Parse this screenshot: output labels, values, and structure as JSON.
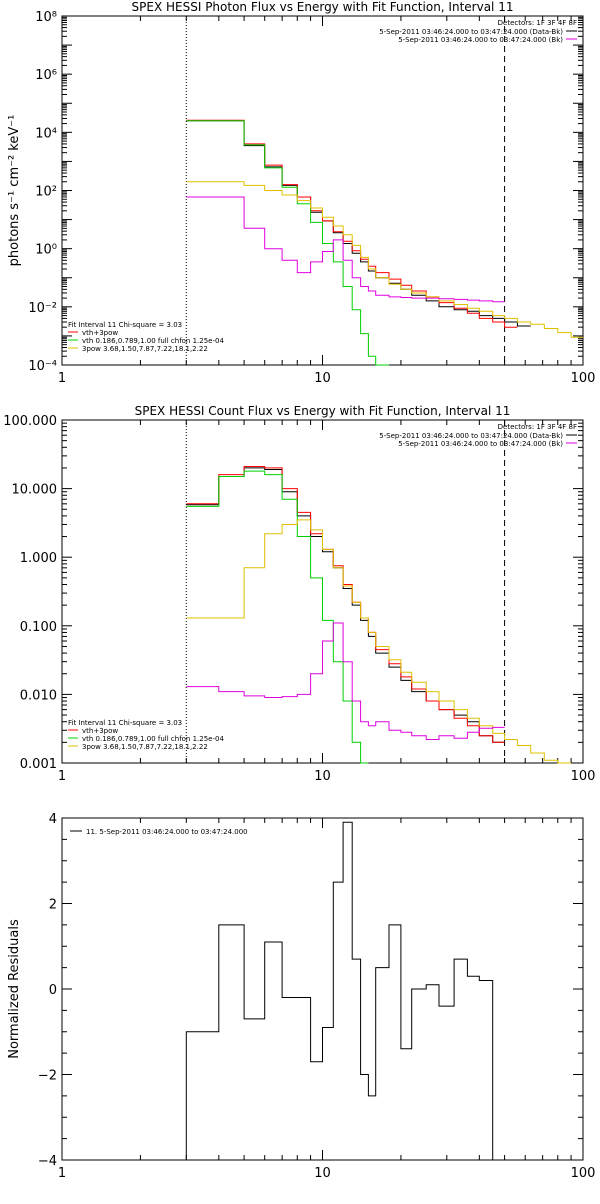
{
  "chart_data": [
    {
      "type": "line",
      "title": "SPEX HESSI Photon Flux vs Energy with Fit Function, Interval 11",
      "xlabel": "",
      "ylabel": "photons s⁻¹ cm⁻² keV⁻¹",
      "xscale": "log",
      "yscale": "log",
      "xlim": [
        1,
        100
      ],
      "ylim": [
        0.0001,
        100000000
      ],
      "x_ticks": [
        1,
        10,
        100
      ],
      "x_tick_labels": [
        "1",
        "10",
        "100"
      ],
      "y_ticks": [
        0.0001,
        0.01,
        1,
        100,
        10000,
        1000000,
        100000000
      ],
      "y_tick_labels": [
        "10⁻⁴",
        "10⁻²",
        "10⁰",
        "10²",
        "10⁴",
        "10⁶",
        "10⁸"
      ],
      "vlines": [
        {
          "x": 3,
          "style": "dotted"
        },
        {
          "x": 50,
          "style": "dashed"
        }
      ],
      "legend_top": {
        "position": "top-right",
        "header": "Detectors: 1F 3F 4F 8F",
        "entries": [
          {
            "label": "5-Sep-2011 03:46:24.000 to 03:47:24.000 (Data-Bk)",
            "color": "#000000"
          },
          {
            "label": "5-Sep-2011 03:46:24.000 to 03:47:24.000 (Bk)",
            "color": "#e000e0"
          }
        ]
      },
      "legend_bottom": {
        "position": "bottom-left",
        "header": "Fit Interval 11    Chi-square = 3.03",
        "entries": [
          {
            "label": "vth+3pow",
            "color": "#ff0000"
          },
          {
            "label": "vth 0.186,0.789,1.00  full chfon 1.25e-04",
            "color": "#00d000"
          },
          {
            "label": "3pow 3.68,1.50,7.87,7.22,18.1,2.22",
            "color": "#e0c000"
          }
        ]
      },
      "bin_edges": [
        3,
        4,
        5,
        6,
        7,
        8,
        9,
        10,
        11,
        12,
        13,
        14,
        15,
        16,
        18,
        20,
        22,
        25,
        28,
        32,
        36,
        40,
        45,
        50,
        56,
        63,
        71,
        80,
        90,
        100
      ],
      "series": [
        {
          "name": "Data-Bk",
          "color": "#000000",
          "values": [
            25000,
            25000,
            3500,
            650,
            150,
            60,
            18,
            9,
            3.5,
            1.5,
            0.7,
            0.35,
            0.17,
            0.1,
            0.065,
            0.04,
            0.025,
            0.016,
            0.01,
            0.008,
            0.007,
            0.005,
            0.004,
            0.003,
            0.0022
          ]
        },
        {
          "name": "vth+3pow",
          "color": "#ff0000",
          "values": [
            26000,
            26000,
            4000,
            750,
            160,
            60,
            20,
            9,
            3.8,
            1.8,
            0.85,
            0.43,
            0.25,
            0.15,
            0.09,
            0.055,
            0.035,
            0.022,
            0.014,
            0.009,
            0.006,
            0.004,
            0.003,
            0.002
          ]
        },
        {
          "name": "vth",
          "color": "#00d000",
          "values": [
            25000,
            25000,
            3700,
            600,
            130,
            35,
            8,
            1.5,
            0.35,
            0.05,
            0.008,
            0.0012,
            0.0002,
            3e-05
          ]
        },
        {
          "name": "3pow",
          "color": "#e0c000",
          "values": [
            200,
            200,
            150,
            100,
            70,
            45,
            25,
            12,
            6,
            3,
            1.3,
            0.5,
            0.2,
            0.1,
            0.06,
            0.04,
            0.03,
            0.022,
            0.016,
            0.012,
            0.009,
            0.007,
            0.005,
            0.004,
            0.003,
            0.0025,
            0.0018,
            0.0013,
            0.0009
          ]
        },
        {
          "name": "Bk",
          "color": "#e000e0",
          "values": [
            60,
            60,
            5,
            1,
            0.4,
            0.15,
            0.35,
            0.8,
            2,
            0.4,
            0.1,
            0.05,
            0.035,
            0.025,
            0.022,
            0.021,
            0.02,
            0.02,
            0.019,
            0.018,
            0.017,
            0.016,
            0.015
          ]
        }
      ]
    },
    {
      "type": "line",
      "title": "SPEX HESSI Count Flux vs Energy with Fit Function, Interval 11",
      "xlabel": "",
      "ylabel": "",
      "xscale": "log",
      "yscale": "log",
      "xlim": [
        1,
        100
      ],
      "ylim": [
        0.001,
        100
      ],
      "x_ticks": [
        1,
        10,
        100
      ],
      "x_tick_labels": [
        "1",
        "10",
        "100"
      ],
      "y_ticks": [
        0.001,
        0.01,
        0.1,
        1,
        10,
        100
      ],
      "y_tick_labels": [
        "0.001",
        "0.010",
        "0.100",
        "1.000",
        "10.000",
        "100.000"
      ],
      "vlines": [
        {
          "x": 3,
          "style": "dotted"
        },
        {
          "x": 50,
          "style": "dashed"
        }
      ],
      "legend_top": {
        "position": "top-right",
        "header": "Detectors: 1F 3F 4F 8F",
        "entries": [
          {
            "label": "5-Sep-2011 03:46:24.000 to 03:47:24.000 (Data-Bk)",
            "color": "#000000"
          },
          {
            "label": "5-Sep-2011 03:46:24.000 to 03:47:24.000 (Bk)",
            "color": "#e000e0"
          }
        ]
      },
      "legend_bottom": {
        "position": "bottom-left",
        "header": "Fit Interval 11    Chi-square = 3.03",
        "entries": [
          {
            "label": "vth+3pow",
            "color": "#ff0000"
          },
          {
            "label": "vth 0.186,0.789,1.00  full chfon 1.25e-04",
            "color": "#00d000"
          },
          {
            "label": "3pow 3.68,1.50,7.87,7.22,18.1,2.22",
            "color": "#e0c000"
          }
        ]
      },
      "bin_edges": [
        3,
        4,
        5,
        6,
        7,
        8,
        9,
        10,
        11,
        12,
        13,
        14,
        15,
        16,
        18,
        20,
        22,
        25,
        28,
        32,
        36,
        40,
        45,
        50,
        56,
        63,
        71,
        80,
        90,
        100
      ],
      "series": [
        {
          "name": "Data-Bk",
          "color": "#000000",
          "values": [
            5.8,
            15,
            20,
            19,
            9,
            4,
            2,
            1.2,
            0.7,
            0.35,
            0.2,
            0.12,
            0.07,
            0.04,
            0.025,
            0.016,
            0.011,
            0.008,
            0.006,
            0.005,
            0.004,
            0.0025,
            0.002
          ]
        },
        {
          "name": "vth+3pow",
          "color": "#ff0000",
          "values": [
            6,
            16,
            21,
            20,
            10,
            4.5,
            2.2,
            1.3,
            0.75,
            0.4,
            0.22,
            0.13,
            0.08,
            0.045,
            0.028,
            0.018,
            0.012,
            0.008,
            0.006,
            0.0045,
            0.0035,
            0.0025,
            0.002
          ]
        },
        {
          "name": "vth",
          "color": "#00d000",
          "values": [
            5.5,
            15,
            18,
            16,
            7,
            2,
            0.5,
            0.12,
            0.03,
            0.008,
            0.002,
            0.0006
          ]
        },
        {
          "name": "3pow",
          "color": "#e0c000",
          "values": [
            0.13,
            0.13,
            0.7,
            2.2,
            3,
            3.5,
            2.5,
            1.3,
            0.7,
            0.38,
            0.22,
            0.13,
            0.08,
            0.05,
            0.032,
            0.021,
            0.015,
            0.011,
            0.008,
            0.006,
            0.0045,
            0.0035,
            0.0027,
            0.0022,
            0.0018,
            0.0014,
            0.0011,
            0.0009
          ]
        },
        {
          "name": "Bk",
          "color": "#e000e0",
          "values": [
            0.013,
            0.011,
            0.0095,
            0.009,
            0.0093,
            0.01,
            0.02,
            0.06,
            0.11,
            0.03,
            0.008,
            0.004,
            0.0035,
            0.004,
            0.003,
            0.0028,
            0.0025,
            0.0022,
            0.0025,
            0.0023,
            0.0028,
            0.0032,
            0.0033
          ]
        }
      ]
    },
    {
      "type": "line",
      "title": "",
      "xlabel": "",
      "ylabel": "Normalized Residuals",
      "xscale": "log",
      "yscale": "linear",
      "xlim": [
        1,
        100
      ],
      "ylim": [
        -4,
        4
      ],
      "x_ticks": [
        1,
        10,
        100
      ],
      "x_tick_labels": [
        "1",
        "10",
        "100"
      ],
      "y_ticks": [
        -4,
        -2,
        0,
        2,
        4
      ],
      "y_tick_labels": [
        "−4",
        "−2",
        "0",
        "2",
        "4"
      ],
      "legend": {
        "position": "top-left",
        "label": "11.  5-Sep-2011 03:46:24.000 to 03:47:24.000"
      },
      "bin_edges": [
        3,
        4,
        5,
        6,
        7,
        8,
        9,
        10,
        11,
        12,
        13,
        14,
        15,
        16,
        18,
        20,
        22,
        25,
        28,
        32,
        36,
        40,
        45,
        50
      ],
      "series": [
        {
          "name": "11.  5-Sep-2011 03:46:24.000 to 03:47:24.000",
          "color": "#000000",
          "values": [
            -1.0,
            1.5,
            -0.7,
            1.1,
            -0.2,
            -0.2,
            -1.7,
            -0.9,
            2.5,
            3.9,
            0.7,
            -2.0,
            -2.5,
            0.5,
            1.5,
            -1.4,
            0.0,
            0.1,
            -0.4,
            0.7,
            0.3,
            0.2,
            -4.0
          ]
        }
      ]
    }
  ]
}
